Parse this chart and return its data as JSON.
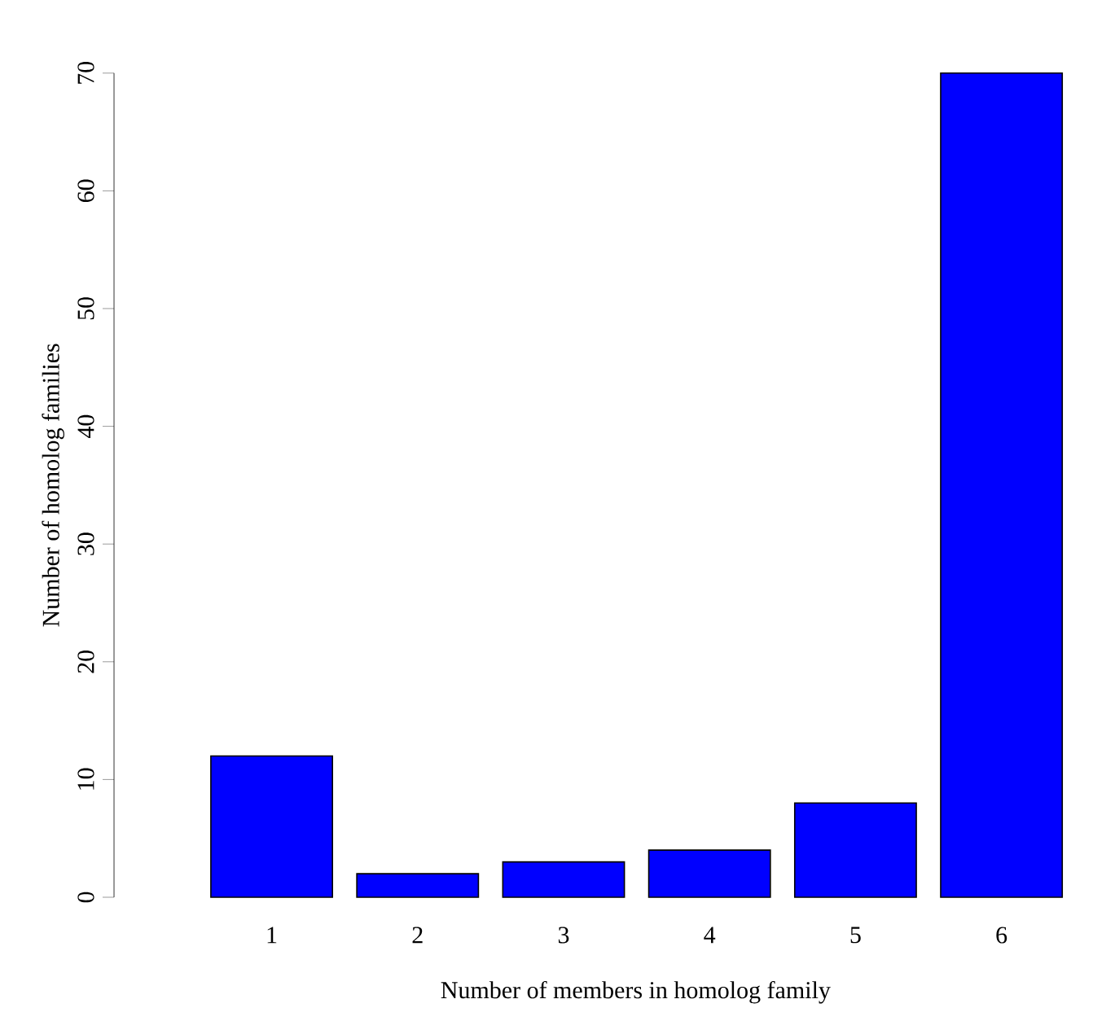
{
  "chart_data": {
    "type": "bar",
    "xlabel": "Number of members in homolog family",
    "ylabel": "Number of homolog families",
    "categories": [
      "1",
      "2",
      "3",
      "4",
      "5",
      "6"
    ],
    "values": [
      12,
      2,
      3,
      4,
      8,
      70
    ],
    "color": "#0000ff",
    "ylim": [
      0,
      70
    ],
    "yticks": [
      0,
      10,
      20,
      30,
      40,
      50,
      60,
      70
    ]
  }
}
